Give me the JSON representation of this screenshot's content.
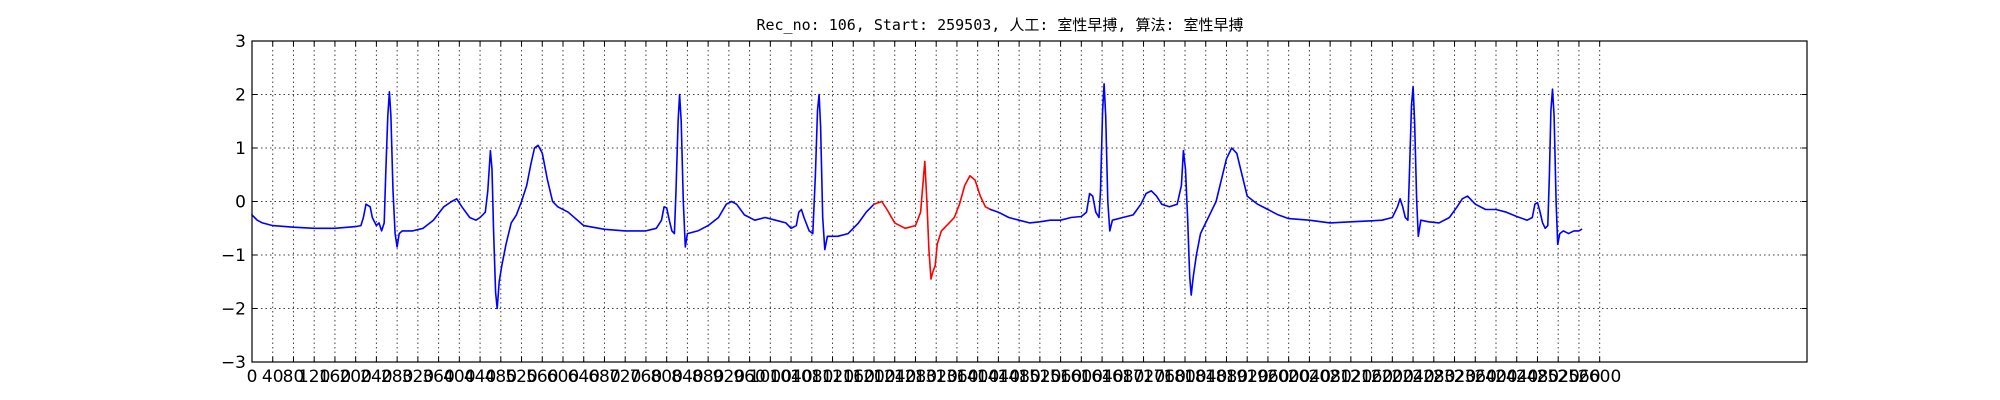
{
  "chart_data": {
    "type": "line",
    "title": "Rec_no: 106, Start: 259503, 人工: 室性早搏, 算法: 室性早搏",
    "xlabel": "",
    "ylabel": "",
    "xlim": [
      0,
      3000
    ],
    "ylim": [
      -3,
      3
    ],
    "x_tick_labels": [
      "0",
      "40",
      "80",
      "120",
      "160",
      "200",
      "240",
      "280",
      "320",
      "360",
      "400",
      "440",
      "480",
      "520",
      "560",
      "600",
      "640",
      "680",
      "720",
      "760",
      "800",
      "840",
      "880",
      "920",
      "960",
      "1000",
      "1040",
      "1080",
      "1120",
      "1160",
      "1200",
      "1240",
      "1280",
      "1320",
      "1360",
      "1400",
      "1440",
      "1480",
      "1520",
      "1560",
      "1600",
      "1640",
      "1680",
      "1720",
      "1760",
      "1800",
      "1840",
      "1880",
      "1920",
      "1960",
      "2000",
      "2040",
      "2080",
      "2120",
      "2160",
      "2200",
      "2240",
      "2280",
      "2320",
      "2360",
      "2400",
      "2440",
      "2480",
      "2520",
      "2560",
      "2600"
    ],
    "y_ticks": [
      -3,
      -2,
      -1,
      0,
      1,
      2,
      3
    ],
    "y_tick_labels": [
      "−3",
      "−2",
      "−1",
      "0",
      "1",
      "2",
      "3"
    ],
    "grid": true,
    "series": [
      {
        "color": "#0000ff",
        "points": [
          [
            0,
            -0.25
          ],
          [
            10,
            -0.35
          ],
          [
            20,
            -0.4
          ],
          [
            40,
            -0.45
          ],
          [
            80,
            -0.48
          ],
          [
            120,
            -0.5
          ],
          [
            160,
            -0.5
          ],
          [
            200,
            -0.47
          ],
          [
            210,
            -0.45
          ],
          [
            215,
            -0.3
          ],
          [
            220,
            -0.05
          ],
          [
            228,
            -0.1
          ],
          [
            232,
            -0.3
          ],
          [
            240,
            -0.45
          ],
          [
            245,
            -0.4
          ],
          [
            250,
            -0.55
          ],
          [
            255,
            -0.4
          ],
          [
            258,
            0.5
          ],
          [
            262,
            1.6
          ],
          [
            265,
            2.05
          ],
          [
            268,
            1.6
          ],
          [
            272,
            0.2
          ],
          [
            276,
            -0.6
          ],
          [
            280,
            -0.85
          ],
          [
            284,
            -0.6
          ],
          [
            290,
            -0.55
          ],
          [
            310,
            -0.55
          ],
          [
            330,
            -0.5
          ],
          [
            350,
            -0.35
          ],
          [
            370,
            -0.1
          ],
          [
            385,
            0.0
          ],
          [
            395,
            0.05
          ],
          [
            405,
            -0.1
          ],
          [
            420,
            -0.3
          ],
          [
            432,
            -0.35
          ],
          [
            440,
            -0.3
          ],
          [
            450,
            -0.2
          ],
          [
            455,
            0.2
          ],
          [
            460,
            0.95
          ],
          [
            463,
            0.6
          ],
          [
            466,
            -0.5
          ],
          [
            470,
            -1.7
          ],
          [
            473,
            -2.0
          ],
          [
            477,
            -1.5
          ],
          [
            482,
            -1.2
          ],
          [
            490,
            -0.8
          ],
          [
            500,
            -0.4
          ],
          [
            510,
            -0.25
          ],
          [
            520,
            0.0
          ],
          [
            530,
            0.3
          ],
          [
            538,
            0.7
          ],
          [
            545,
            1.0
          ],
          [
            552,
            1.05
          ],
          [
            560,
            0.9
          ],
          [
            570,
            0.4
          ],
          [
            580,
            0.0
          ],
          [
            590,
            -0.1
          ],
          [
            610,
            -0.2
          ],
          [
            640,
            -0.45
          ],
          [
            680,
            -0.52
          ],
          [
            720,
            -0.55
          ],
          [
            760,
            -0.55
          ],
          [
            780,
            -0.5
          ],
          [
            790,
            -0.35
          ],
          [
            795,
            -0.1
          ],
          [
            800,
            -0.12
          ],
          [
            805,
            -0.35
          ],
          [
            810,
            -0.55
          ],
          [
            815,
            -0.6
          ],
          [
            818,
            0.2
          ],
          [
            822,
            1.5
          ],
          [
            825,
            2.0
          ],
          [
            828,
            1.5
          ],
          [
            832,
            0.0
          ],
          [
            836,
            -0.85
          ],
          [
            840,
            -0.6
          ],
          [
            860,
            -0.55
          ],
          [
            880,
            -0.45
          ],
          [
            900,
            -0.3
          ],
          [
            915,
            -0.05
          ],
          [
            925,
            0.0
          ],
          [
            935,
            -0.05
          ],
          [
            950,
            -0.25
          ],
          [
            970,
            -0.35
          ],
          [
            990,
            -0.3
          ],
          [
            1010,
            -0.35
          ],
          [
            1030,
            -0.4
          ],
          [
            1040,
            -0.5
          ],
          [
            1050,
            -0.45
          ],
          [
            1055,
            -0.2
          ],
          [
            1060,
            -0.15
          ],
          [
            1065,
            -0.3
          ],
          [
            1075,
            -0.55
          ],
          [
            1082,
            -0.6
          ],
          [
            1087,
            0.5
          ],
          [
            1091,
            1.7
          ],
          [
            1094,
            2.0
          ],
          [
            1097,
            1.4
          ],
          [
            1101,
            -0.3
          ],
          [
            1105,
            -0.9
          ],
          [
            1110,
            -0.65
          ],
          [
            1130,
            -0.65
          ],
          [
            1150,
            -0.6
          ],
          [
            1170,
            -0.4
          ],
          [
            1185,
            -0.2
          ],
          [
            1200,
            -0.05
          ]
        ]
      },
      {
        "color": "#ff0000",
        "points": [
          [
            1200,
            -0.05
          ],
          [
            1215,
            0.0
          ],
          [
            1225,
            -0.15
          ],
          [
            1240,
            -0.4
          ],
          [
            1260,
            -0.5
          ],
          [
            1280,
            -0.45
          ],
          [
            1290,
            -0.2
          ],
          [
            1298,
            0.75
          ],
          [
            1302,
            0.0
          ],
          [
            1306,
            -0.9
          ],
          [
            1310,
            -1.45
          ],
          [
            1314,
            -1.3
          ],
          [
            1318,
            -1.2
          ],
          [
            1322,
            -0.8
          ],
          [
            1330,
            -0.55
          ],
          [
            1345,
            -0.4
          ],
          [
            1355,
            -0.3
          ],
          [
            1365,
            -0.05
          ],
          [
            1375,
            0.3
          ],
          [
            1385,
            0.48
          ],
          [
            1395,
            0.4
          ],
          [
            1405,
            0.1
          ],
          [
            1415,
            -0.1
          ],
          [
            1425,
            -0.15
          ]
        ]
      },
      {
        "color": "#0000ff",
        "points": [
          [
            1425,
            -0.15
          ],
          [
            1440,
            -0.2
          ],
          [
            1460,
            -0.3
          ],
          [
            1480,
            -0.35
          ],
          [
            1500,
            -0.4
          ],
          [
            1520,
            -0.38
          ],
          [
            1540,
            -0.35
          ],
          [
            1560,
            -0.35
          ],
          [
            1580,
            -0.3
          ],
          [
            1600,
            -0.28
          ],
          [
            1610,
            -0.2
          ],
          [
            1616,
            0.15
          ],
          [
            1622,
            0.1
          ],
          [
            1628,
            -0.2
          ],
          [
            1634,
            -0.3
          ],
          [
            1637,
            0.2
          ],
          [
            1641,
            1.7
          ],
          [
            1644,
            2.2
          ],
          [
            1647,
            1.6
          ],
          [
            1651,
            0.0
          ],
          [
            1655,
            -0.55
          ],
          [
            1660,
            -0.35
          ],
          [
            1680,
            -0.3
          ],
          [
            1700,
            -0.25
          ],
          [
            1715,
            -0.05
          ],
          [
            1725,
            0.15
          ],
          [
            1735,
            0.2
          ],
          [
            1745,
            0.1
          ],
          [
            1755,
            -0.05
          ],
          [
            1770,
            -0.1
          ],
          [
            1785,
            -0.05
          ],
          [
            1793,
            0.3
          ],
          [
            1797,
            0.95
          ],
          [
            1801,
            0.6
          ],
          [
            1805,
            -0.3
          ],
          [
            1809,
            -1.4
          ],
          [
            1812,
            -1.75
          ],
          [
            1816,
            -1.4
          ],
          [
            1822,
            -1.0
          ],
          [
            1830,
            -0.6
          ],
          [
            1840,
            -0.4
          ],
          [
            1850,
            -0.2
          ],
          [
            1860,
            0.0
          ],
          [
            1870,
            0.4
          ],
          [
            1880,
            0.8
          ],
          [
            1890,
            1.0
          ],
          [
            1900,
            0.9
          ],
          [
            1910,
            0.5
          ],
          [
            1920,
            0.1
          ],
          [
            1940,
            -0.05
          ],
          [
            1960,
            -0.15
          ],
          [
            1980,
            -0.25
          ],
          [
            2000,
            -0.32
          ],
          [
            2040,
            -0.35
          ],
          [
            2080,
            -0.4
          ],
          [
            2120,
            -0.38
          ],
          [
            2160,
            -0.36
          ],
          [
            2180,
            -0.35
          ],
          [
            2200,
            -0.3
          ],
          [
            2210,
            -0.1
          ],
          [
            2215,
            0.05
          ],
          [
            2220,
            -0.1
          ],
          [
            2225,
            -0.3
          ],
          [
            2230,
            -0.35
          ],
          [
            2233,
            0.5
          ],
          [
            2237,
            1.8
          ],
          [
            2240,
            2.15
          ],
          [
            2243,
            1.5
          ],
          [
            2247,
            0.0
          ],
          [
            2250,
            -0.65
          ],
          [
            2255,
            -0.35
          ],
          [
            2270,
            -0.38
          ],
          [
            2290,
            -0.4
          ],
          [
            2310,
            -0.3
          ],
          [
            2325,
            -0.1
          ],
          [
            2335,
            0.05
          ],
          [
            2345,
            0.1
          ],
          [
            2360,
            -0.05
          ],
          [
            2380,
            -0.15
          ],
          [
            2400,
            -0.15
          ],
          [
            2420,
            -0.2
          ],
          [
            2440,
            -0.28
          ],
          [
            2460,
            -0.35
          ],
          [
            2470,
            -0.3
          ],
          [
            2475,
            -0.05
          ],
          [
            2480,
            -0.02
          ],
          [
            2485,
            -0.2
          ],
          [
            2490,
            -0.4
          ],
          [
            2495,
            -0.5
          ],
          [
            2500,
            -0.45
          ],
          [
            2503,
            0.5
          ],
          [
            2506,
            1.7
          ],
          [
            2509,
            2.1
          ],
          [
            2512,
            1.6
          ],
          [
            2516,
            0.0
          ],
          [
            2519,
            -0.8
          ],
          [
            2523,
            -0.6
          ],
          [
            2530,
            -0.55
          ],
          [
            2540,
            -0.6
          ],
          [
            2550,
            -0.55
          ],
          [
            2560,
            -0.55
          ],
          [
            2565,
            -0.52
          ]
        ]
      }
    ]
  }
}
